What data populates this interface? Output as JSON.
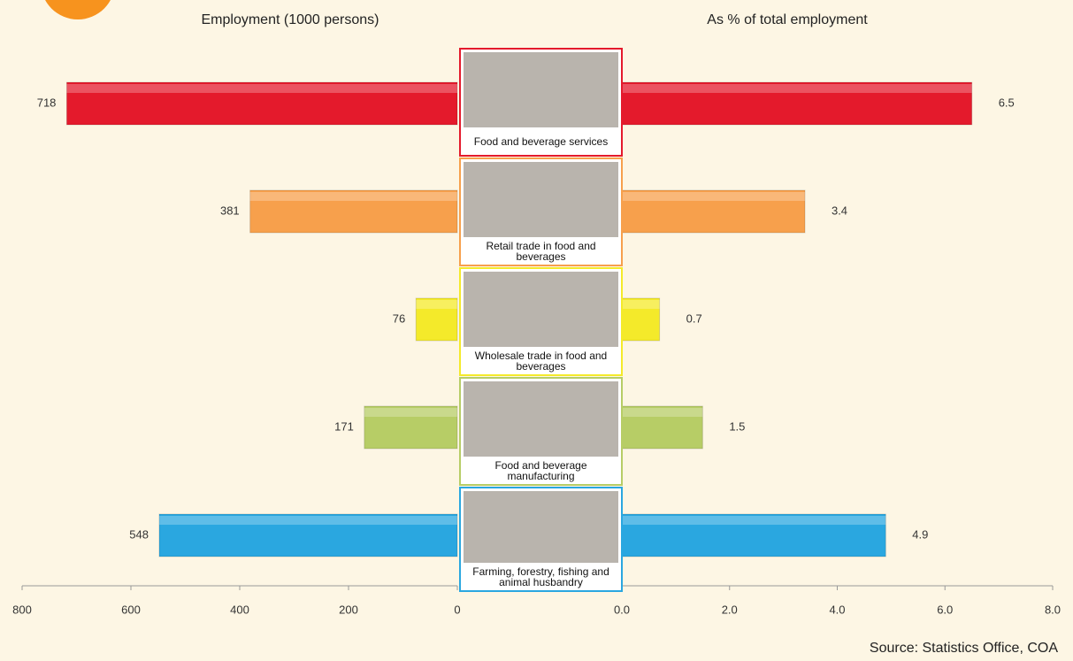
{
  "chart_data": {
    "type": "butterfly",
    "categories": [
      "Food and beverage services",
      "Retail trade in food and beverages",
      "Wholesale trade in food and beverages",
      "Food and beverage manufacturing",
      "Farming, forestry, fishing and animal husbandry"
    ],
    "colors": [
      "#e41a2c",
      "#f7a04c",
      "#f4ea2a",
      "#b7cd66",
      "#2aa7e0"
    ],
    "left": {
      "title": "Employment (1000 persons)",
      "values": [
        718,
        381,
        76,
        171,
        548
      ],
      "xlim": [
        0,
        800
      ],
      "reversed": true,
      "xticks": [
        800,
        600,
        400,
        200,
        0
      ]
    },
    "right": {
      "title": "As % of total employment",
      "values": [
        6.5,
        3.4,
        0.7,
        1.5,
        4.9
      ],
      "xlim": [
        0,
        8
      ],
      "xticks": [
        {
          "value": 0,
          "label": "0.0"
        },
        {
          "value": 2,
          "label": "2.0"
        },
        {
          "value": 4,
          "label": "4.0"
        },
        {
          "value": 6,
          "label": "6.0"
        },
        {
          "value": 8,
          "label": "8.0"
        }
      ]
    },
    "source": "Source: Statistics Office, COA"
  }
}
